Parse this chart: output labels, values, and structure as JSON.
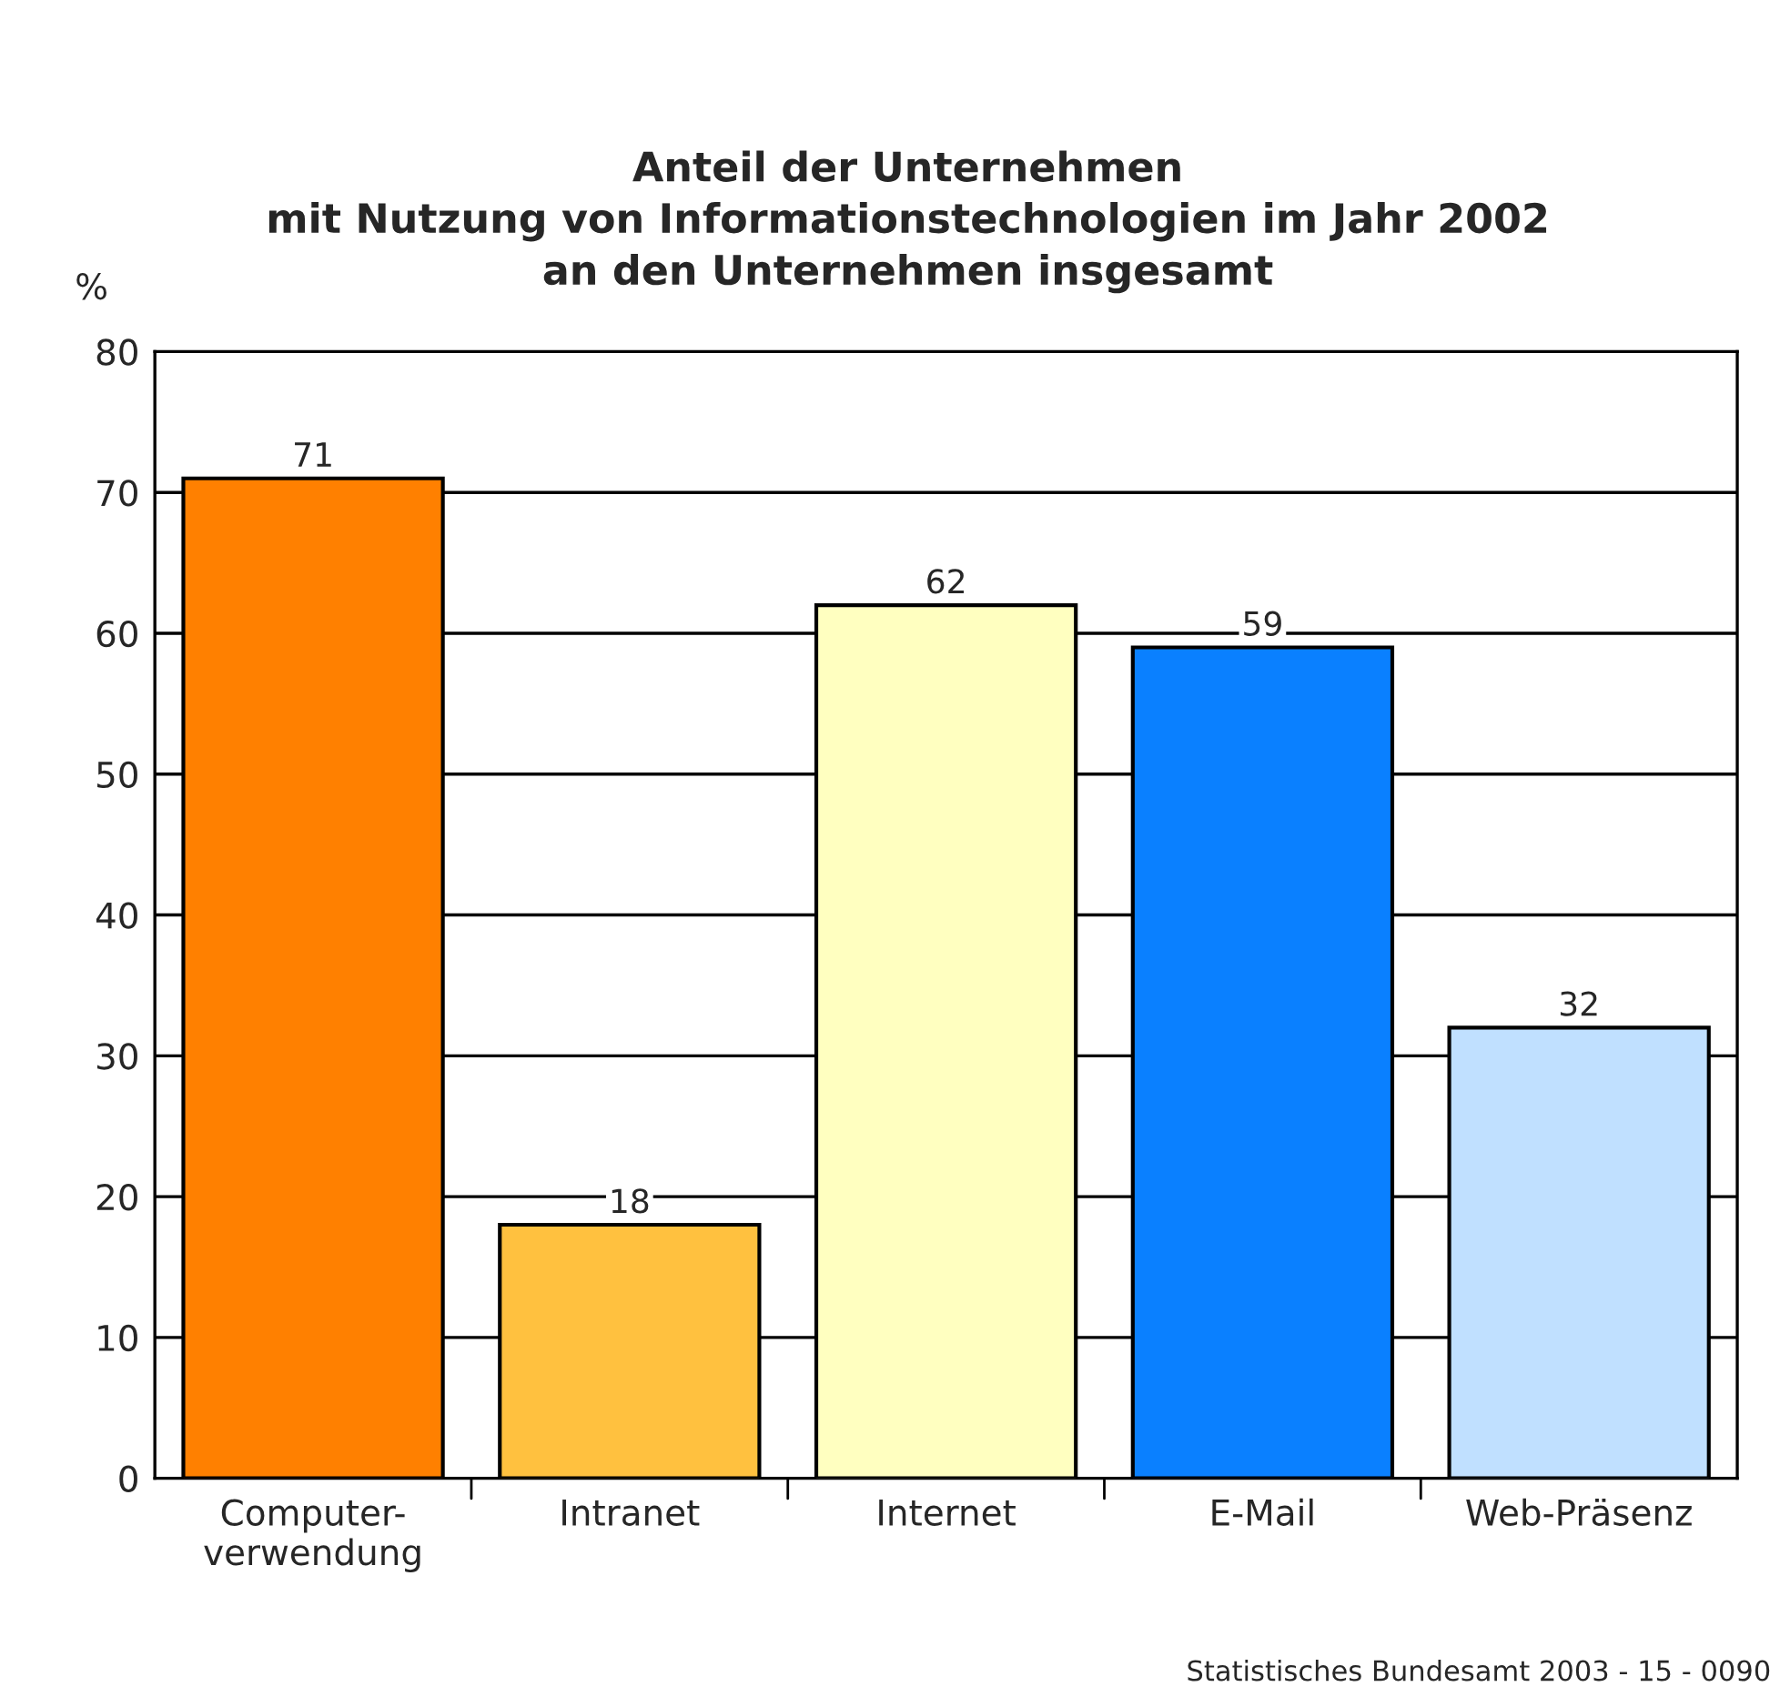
{
  "chart_data": {
    "type": "bar",
    "title": "Anteil der Unternehmen\nmit Nutzung von Informationstechnologien im Jahr 2002\nan den Unternehmen insgesamt",
    "ylabel": "%",
    "categories": [
      "Computer-\nverwendung",
      "Intranet",
      "Internet",
      "E-Mail",
      "Web-Präsenz"
    ],
    "values": [
      71,
      18,
      62,
      59,
      32
    ],
    "colors": [
      "#ff8000",
      "#ffc13f",
      "#ffffc0",
      "#0a80ff",
      "#c0e0ff"
    ],
    "ylim": [
      0,
      80
    ],
    "yticks": [
      0,
      10,
      20,
      30,
      40,
      50,
      60,
      70,
      80
    ],
    "grid": "y",
    "data_labels": true,
    "annotations": [
      "Statistisches Bundesamt 2003 - 15 - 0090"
    ]
  }
}
